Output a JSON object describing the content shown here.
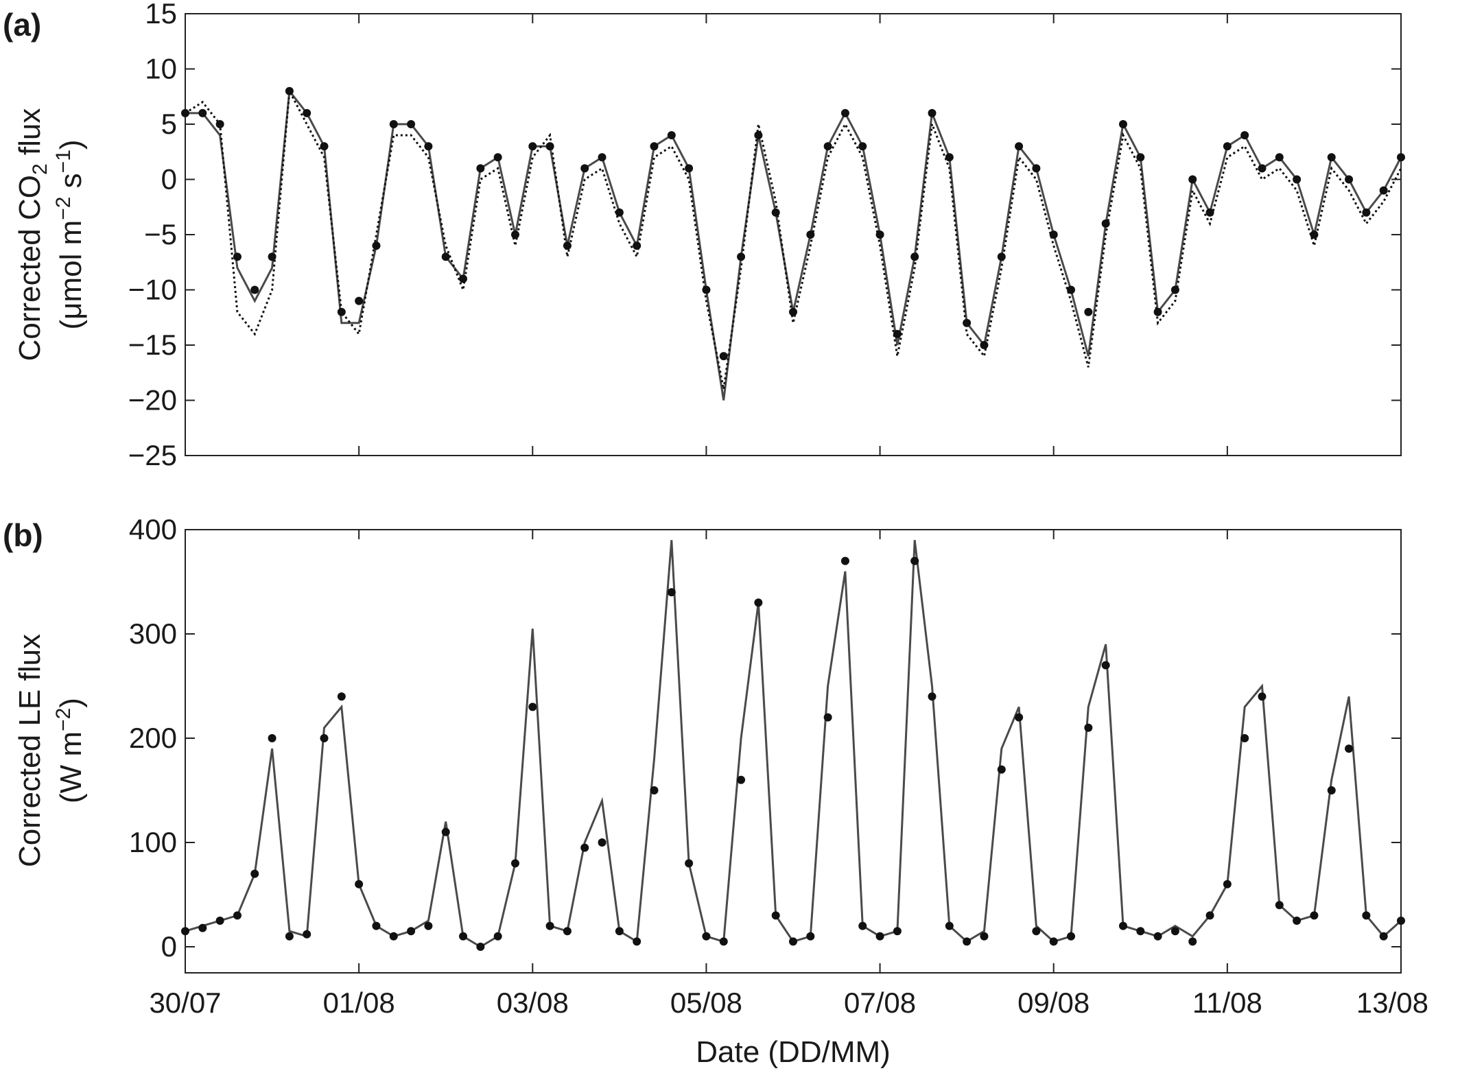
{
  "figure": {
    "x_axis_label": "Date (DD/MM)",
    "x_tick_labels": [
      "30/07",
      "01/08",
      "03/08",
      "05/08",
      "07/08",
      "09/08",
      "11/08",
      "13/08"
    ]
  },
  "colors": {
    "solid_series": "#4a4a4a",
    "dotted_series": "#111111",
    "markers": "#111111",
    "frame": "#222222"
  },
  "chart_data": [
    {
      "type": "line",
      "panel": "(a)",
      "ylabel_line1": "Corrected CO",
      "ylabel_sub": "2",
      "ylabel_line1_end": " flux",
      "ylabel_line2": "(μmol m",
      "ylabel_sup1": "−2",
      "ylabel_mid": " s",
      "ylabel_sup2": "−1",
      "ylabel_end": ")",
      "ylim": [
        -25,
        15
      ],
      "yticks": [
        -25,
        -20,
        -15,
        -10,
        -5,
        0,
        5,
        10,
        15
      ],
      "ytick_labels": [
        "−25",
        "−20",
        "−15",
        "−10",
        "−5",
        "0",
        "5",
        "10",
        "15"
      ],
      "xlim_days_from_30_07": [
        0,
        14
      ],
      "grid": false,
      "series": [
        {
          "style": "solid",
          "color": "#4a4a4a",
          "x": [
            0.0,
            0.2,
            0.4,
            0.6,
            0.8,
            1.0,
            1.2,
            1.4,
            1.6,
            1.8,
            2.0,
            2.2,
            2.4,
            2.6,
            2.8,
            3.0,
            3.2,
            3.4,
            3.6,
            3.8,
            4.0,
            4.2,
            4.4,
            4.6,
            4.8,
            5.0,
            5.2,
            5.4,
            5.6,
            5.8,
            6.0,
            6.2,
            6.4,
            6.6,
            6.8,
            7.0,
            7.2,
            7.4,
            7.6,
            7.8,
            8.0,
            8.2,
            8.4,
            8.6,
            8.8,
            9.0,
            9.2,
            9.4,
            9.6,
            9.8,
            10.0,
            10.2,
            10.4,
            10.6,
            10.8,
            11.0,
            11.2,
            11.4,
            11.6,
            11.8,
            12.0,
            12.2,
            12.4,
            12.6,
            12.8,
            13.0,
            13.2,
            13.4,
            13.6,
            13.8,
            14.0
          ],
          "y": [
            6,
            6,
            4,
            -8,
            -11,
            -8,
            8,
            6,
            3,
            -13,
            -13,
            -6,
            5,
            5,
            3,
            -7,
            -9,
            1,
            2,
            -5,
            3,
            3,
            -6,
            1,
            2,
            -3,
            -6,
            3,
            4,
            1,
            -10,
            -20,
            -7,
            4,
            -3,
            -12,
            -5,
            3,
            6,
            3,
            -5,
            -15,
            -7,
            6,
            2,
            -13,
            -15,
            -7,
            3,
            1,
            -5,
            -10,
            -16,
            -4,
            5,
            2,
            -12,
            -10,
            0,
            -3,
            3,
            4,
            1,
            2,
            0,
            -5,
            2,
            0,
            -3,
            -1,
            2
          ]
        },
        {
          "style": "dotted",
          "color": "#111111",
          "x": [
            0.0,
            0.2,
            0.4,
            0.6,
            0.8,
            1.0,
            1.2,
            1.4,
            1.6,
            1.8,
            2.0,
            2.2,
            2.4,
            2.6,
            2.8,
            3.0,
            3.2,
            3.4,
            3.6,
            3.8,
            4.0,
            4.2,
            4.4,
            4.6,
            4.8,
            5.0,
            5.2,
            5.4,
            5.6,
            5.8,
            6.0,
            6.2,
            6.4,
            6.6,
            6.8,
            7.0,
            7.2,
            7.4,
            7.6,
            7.8,
            8.0,
            8.2,
            8.4,
            8.6,
            8.8,
            9.0,
            9.2,
            9.4,
            9.6,
            9.8,
            10.0,
            10.2,
            10.4,
            10.6,
            10.8,
            11.0,
            11.2,
            11.4,
            11.6,
            11.8,
            12.0,
            12.2,
            12.4,
            12.6,
            12.8,
            13.0,
            13.2,
            13.4,
            13.6,
            13.8,
            14.0
          ],
          "y": [
            6,
            7,
            5,
            -12,
            -14,
            -10,
            8,
            5,
            2,
            -12,
            -14,
            -5,
            4,
            4,
            2,
            -6,
            -10,
            0,
            1,
            -6,
            2,
            4,
            -7,
            0,
            1,
            -4,
            -7,
            2,
            3,
            0,
            -11,
            -19,
            -8,
            5,
            -2,
            -13,
            -6,
            2,
            5,
            2,
            -6,
            -16,
            -8,
            5,
            1,
            -14,
            -16,
            -8,
            2,
            0,
            -6,
            -11,
            -17,
            -5,
            4,
            1,
            -13,
            -11,
            -1,
            -4,
            2,
            3,
            0,
            1,
            -1,
            -6,
            1,
            -1,
            -4,
            -2,
            1
          ]
        },
        {
          "style": "markers",
          "color": "#111111",
          "x": [
            0.0,
            0.2,
            0.4,
            0.6,
            0.8,
            1.0,
            1.2,
            1.4,
            1.6,
            1.8,
            2.0,
            2.2,
            2.4,
            2.6,
            2.8,
            3.0,
            3.2,
            3.4,
            3.6,
            3.8,
            4.0,
            4.2,
            4.4,
            4.6,
            4.8,
            5.0,
            5.2,
            5.4,
            5.6,
            5.8,
            6.0,
            6.2,
            6.4,
            6.6,
            6.8,
            7.0,
            7.2,
            7.4,
            7.6,
            7.8,
            8.0,
            8.2,
            8.4,
            8.6,
            8.8,
            9.0,
            9.2,
            9.4,
            9.6,
            9.8,
            10.0,
            10.2,
            10.4,
            10.6,
            10.8,
            11.0,
            11.2,
            11.4,
            11.6,
            11.8,
            12.0,
            12.2,
            12.4,
            12.6,
            12.8,
            13.0,
            13.2,
            13.4,
            13.6,
            13.8,
            14.0
          ],
          "y": [
            6,
            6,
            5,
            -7,
            -10,
            -7,
            8,
            6,
            3,
            -12,
            -11,
            -6,
            5,
            5,
            3,
            -7,
            -9,
            1,
            2,
            -5,
            3,
            3,
            -6,
            1,
            2,
            -3,
            -6,
            3,
            4,
            1,
            -10,
            -16,
            -7,
            4,
            -3,
            -12,
            -5,
            3,
            6,
            3,
            -5,
            -14,
            -7,
            6,
            2,
            -13,
            -15,
            -7,
            3,
            1,
            -5,
            -10,
            -12,
            -4,
            5,
            2,
            -12,
            -10,
            0,
            -3,
            3,
            4,
            1,
            2,
            0,
            -5,
            2,
            0,
            -3,
            -1,
            2
          ]
        }
      ]
    },
    {
      "type": "line",
      "panel": "(b)",
      "ylabel_line1": "Corrected LE flux",
      "ylabel_line2": "(W m",
      "ylabel_sup1": "−2",
      "ylabel_end": ")",
      "ylim": [
        -25,
        400
      ],
      "yticks": [
        0,
        100,
        200,
        300,
        400
      ],
      "ytick_labels": [
        "0",
        "100",
        "200",
        "300",
        "400"
      ],
      "xlim_days_from_30_07": [
        0,
        14
      ],
      "grid": false,
      "series": [
        {
          "style": "solid",
          "color": "#4a4a4a",
          "x": [
            0.0,
            0.2,
            0.4,
            0.6,
            0.8,
            1.0,
            1.2,
            1.4,
            1.6,
            1.8,
            2.0,
            2.2,
            2.4,
            2.6,
            2.8,
            3.0,
            3.2,
            3.4,
            3.6,
            3.8,
            4.0,
            4.2,
            4.4,
            4.6,
            4.8,
            5.0,
            5.2,
            5.4,
            5.6,
            5.8,
            6.0,
            6.2,
            6.4,
            6.6,
            6.8,
            7.0,
            7.2,
            7.4,
            7.6,
            7.8,
            8.0,
            8.2,
            8.4,
            8.6,
            8.8,
            9.0,
            9.2,
            9.4,
            9.6,
            9.8,
            10.0,
            10.2,
            10.4,
            10.6,
            10.8,
            11.0,
            11.2,
            11.4,
            11.6,
            11.8,
            12.0,
            12.2,
            12.4,
            12.6,
            12.8,
            13.0,
            13.2,
            13.4,
            13.6,
            13.8,
            14.0
          ],
          "y": [
            15,
            20,
            25,
            30,
            70,
            190,
            15,
            10,
            210,
            230,
            60,
            20,
            10,
            15,
            25,
            120,
            10,
            0,
            10,
            80,
            305,
            20,
            15,
            100,
            140,
            15,
            5,
            180,
            390,
            80,
            10,
            5,
            200,
            330,
            30,
            5,
            10,
            250,
            360,
            20,
            10,
            15,
            390,
            250,
            20,
            5,
            15,
            190,
            230,
            20,
            5,
            10,
            230,
            290,
            20,
            15,
            10,
            20,
            10,
            30,
            60,
            230,
            250,
            40,
            25,
            30,
            160,
            240,
            30,
            10,
            25
          ]
        },
        {
          "style": "markers",
          "color": "#111111",
          "x": [
            0.0,
            0.2,
            0.4,
            0.6,
            0.8,
            1.0,
            1.2,
            1.4,
            1.6,
            1.8,
            2.0,
            2.2,
            2.4,
            2.6,
            2.8,
            3.0,
            3.2,
            3.4,
            3.6,
            3.8,
            4.0,
            4.2,
            4.4,
            4.6,
            4.8,
            5.0,
            5.2,
            5.4,
            5.6,
            5.8,
            6.0,
            6.2,
            6.4,
            6.6,
            6.8,
            7.0,
            7.2,
            7.4,
            7.6,
            7.8,
            8.0,
            8.2,
            8.4,
            8.6,
            8.8,
            9.0,
            9.2,
            9.4,
            9.6,
            9.8,
            10.0,
            10.2,
            10.4,
            10.6,
            10.8,
            11.0,
            11.2,
            11.4,
            11.6,
            11.8,
            12.0,
            12.2,
            12.4,
            12.6,
            12.8,
            13.0,
            13.2,
            13.4,
            13.6,
            13.8,
            14.0
          ],
          "y": [
            15,
            18,
            25,
            30,
            70,
            200,
            10,
            12,
            200,
            240,
            60,
            20,
            10,
            15,
            20,
            110,
            10,
            0,
            10,
            80,
            230,
            20,
            15,
            95,
            100,
            15,
            5,
            150,
            340,
            80,
            10,
            5,
            160,
            330,
            30,
            5,
            10,
            220,
            370,
            20,
            10,
            15,
            370,
            240,
            20,
            5,
            10,
            170,
            220,
            15,
            5,
            10,
            210,
            270,
            20,
            15,
            10,
            15,
            5,
            30,
            60,
            200,
            240,
            40,
            25,
            30,
            150,
            190,
            30,
            10,
            25
          ]
        }
      ]
    }
  ]
}
